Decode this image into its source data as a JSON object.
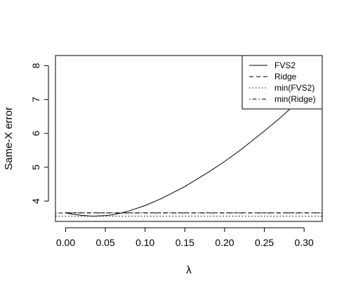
{
  "chart_data": {
    "type": "line",
    "title": "",
    "xlabel": "λ",
    "ylabel": "Same-X error",
    "xlim": [
      -0.0128,
      0.3228
    ],
    "ylim": [
      3.4,
      8.3
    ],
    "xticks": [
      0.0,
      0.05,
      0.1,
      0.15,
      0.2,
      0.25,
      0.3
    ],
    "xtick_labels": [
      "0.00",
      "0.05",
      "0.10",
      "0.15",
      "0.20",
      "0.25",
      "0.30"
    ],
    "yticks": [
      4,
      5,
      6,
      7,
      8
    ],
    "ytick_labels": [
      "4",
      "5",
      "6",
      "7",
      "8"
    ],
    "legend_position": "top-right",
    "series": [
      {
        "name": "FVS2",
        "line_style": "solid",
        "x": [
          0.0,
          0.01,
          0.02,
          0.03,
          0.035,
          0.04,
          0.05,
          0.06,
          0.07,
          0.08,
          0.1,
          0.12,
          0.15,
          0.18,
          0.2,
          0.22,
          0.25,
          0.27,
          0.3,
          0.32
        ],
        "y": [
          3.65,
          3.61,
          3.58,
          3.56,
          3.555,
          3.56,
          3.57,
          3.6,
          3.65,
          3.71,
          3.87,
          4.07,
          4.43,
          4.86,
          5.17,
          5.51,
          6.07,
          6.46,
          7.1,
          7.55
        ]
      },
      {
        "name": "Ridge",
        "line_style": "dashed",
        "x": [
          0.0,
          0.32
        ],
        "y": [
          3.655,
          3.655
        ]
      },
      {
        "name": "min(FVS2)",
        "line_style": "dotted",
        "x": [
          -0.0128,
          0.3228
        ],
        "y": [
          3.555,
          3.555
        ]
      },
      {
        "name": "min(Ridge)",
        "line_style": "dotdash",
        "x": [
          -0.0128,
          0.3228
        ],
        "y": [
          3.65,
          3.65
        ]
      }
    ]
  }
}
